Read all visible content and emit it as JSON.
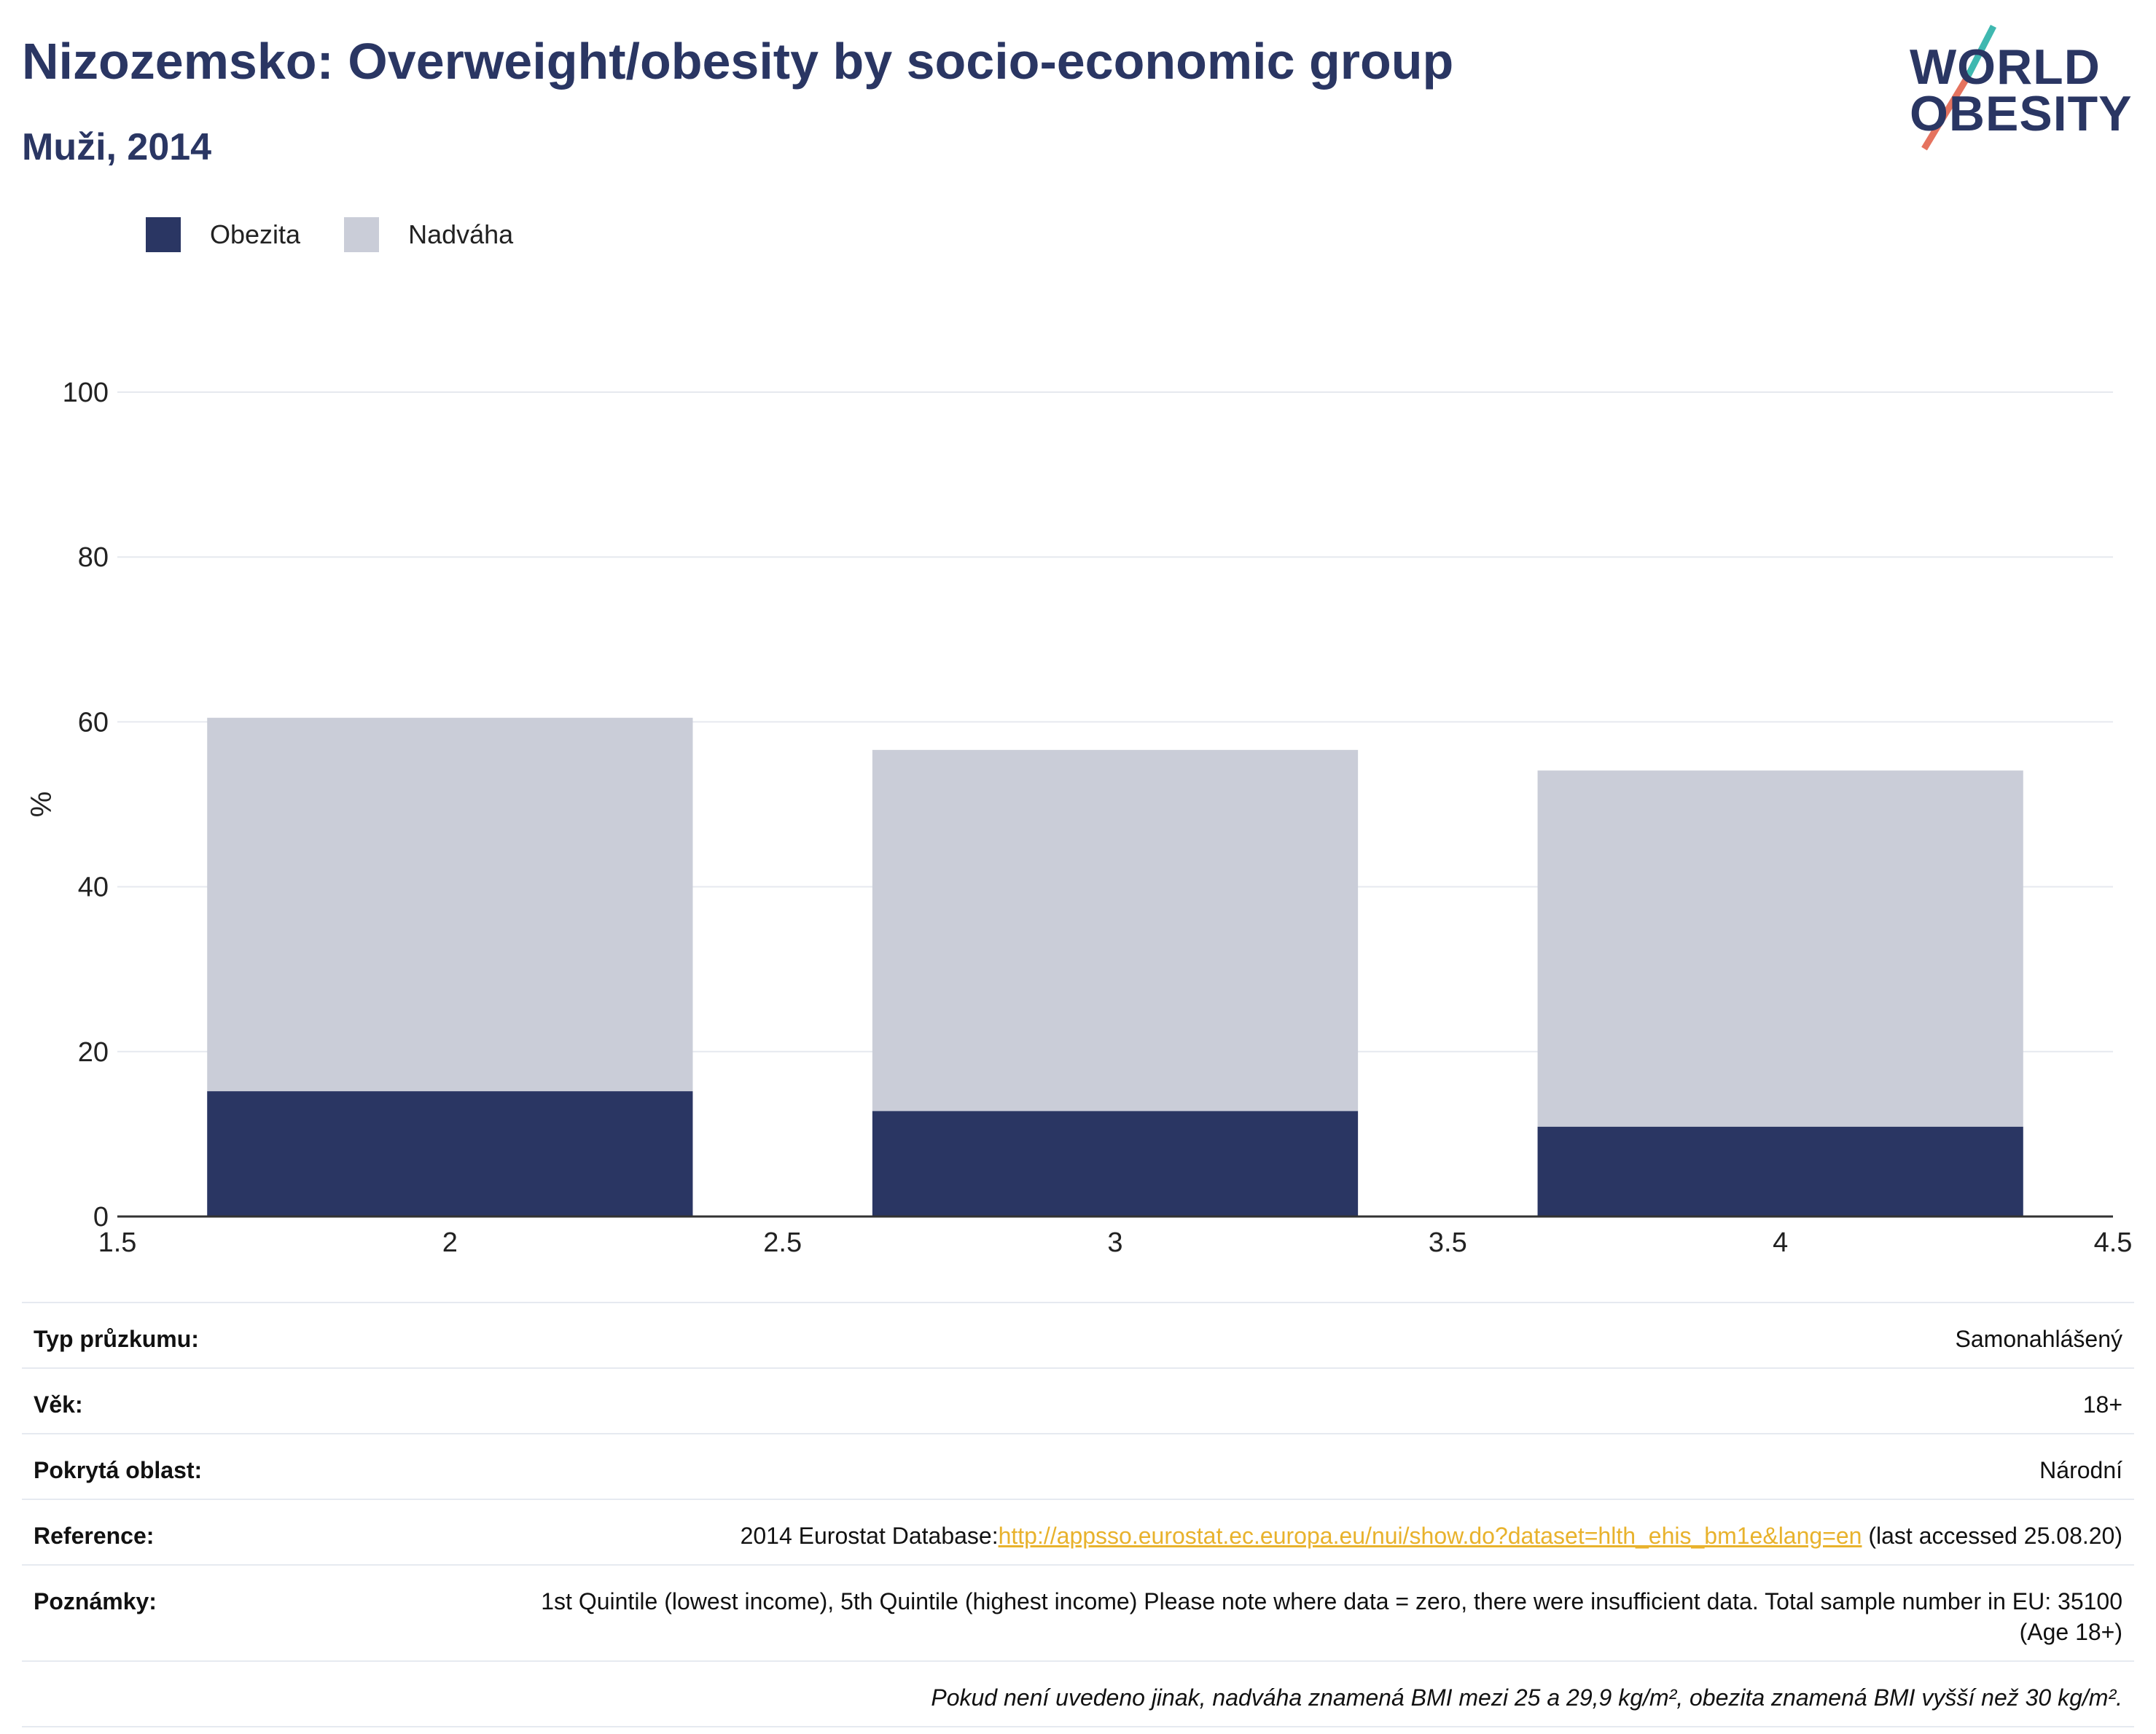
{
  "header": {
    "title": "Nizozemsko: Overweight/obesity by socio-economic group",
    "subtitle": "Muži, 2014"
  },
  "logo": {
    "line1": "WORLD",
    "line2": "OBESITY",
    "colors": {
      "text": "#2a3663",
      "slash_top": "#3fb8b0",
      "slash_bottom": "#e5735f"
    }
  },
  "legend": {
    "items": [
      {
        "label": "Obezita",
        "color": "#2a3663"
      },
      {
        "label": "Nadváha",
        "color": "#cacdd8"
      }
    ]
  },
  "chart_data": {
    "type": "bar",
    "stacked": true,
    "x": [
      2,
      3,
      4
    ],
    "series": [
      {
        "name": "Obezita",
        "color": "#2a3663",
        "values": [
          15.2,
          12.8,
          10.9
        ]
      },
      {
        "name": "Nadváha",
        "color": "#cacdd8",
        "values": [
          45.3,
          43.8,
          43.2
        ]
      }
    ],
    "totals": [
      60.5,
      56.6,
      54.1
    ],
    "xlim": [
      1.5,
      4.5
    ],
    "xticks": [
      "1.5",
      "2",
      "2.5",
      "3",
      "3.5",
      "4",
      "4.5"
    ],
    "ylim": [
      0,
      100
    ],
    "yticks": [
      "0",
      "20",
      "40",
      "60",
      "80",
      "100"
    ],
    "ylabel": "%",
    "xlabel": "",
    "grid": true,
    "legend_position": "top-left"
  },
  "info_table": {
    "survey_type": {
      "label": "Typ průzkumu:",
      "value": "Samonahlášený"
    },
    "age": {
      "label": "Věk:",
      "value": "18+"
    },
    "area": {
      "label": "Pokrytá oblast:",
      "value": "Národní"
    },
    "reference": {
      "label": "Reference:",
      "prefix": "2014 Eurostat Database:",
      "link": "http://appsso.eurostat.ec.europa.eu/nui/show.do?dataset=hlth_ehis_bm1e&lang=en",
      "suffix": " (last accessed 25.08.20)"
    },
    "notes": {
      "label": "Poznámky:",
      "value": "1st Quintile (lowest income), 5th Quintile (highest income) Please note where data = zero, there were insufficient data. Total sample number in EU: 35100 (Age 18+)"
    },
    "footnote": "Pokud není uvedeno jinak, nadváha znamená BMI mezi 25 a 29,9 kg/m², obezita znamená BMI vyšší než 30 kg/m²."
  }
}
